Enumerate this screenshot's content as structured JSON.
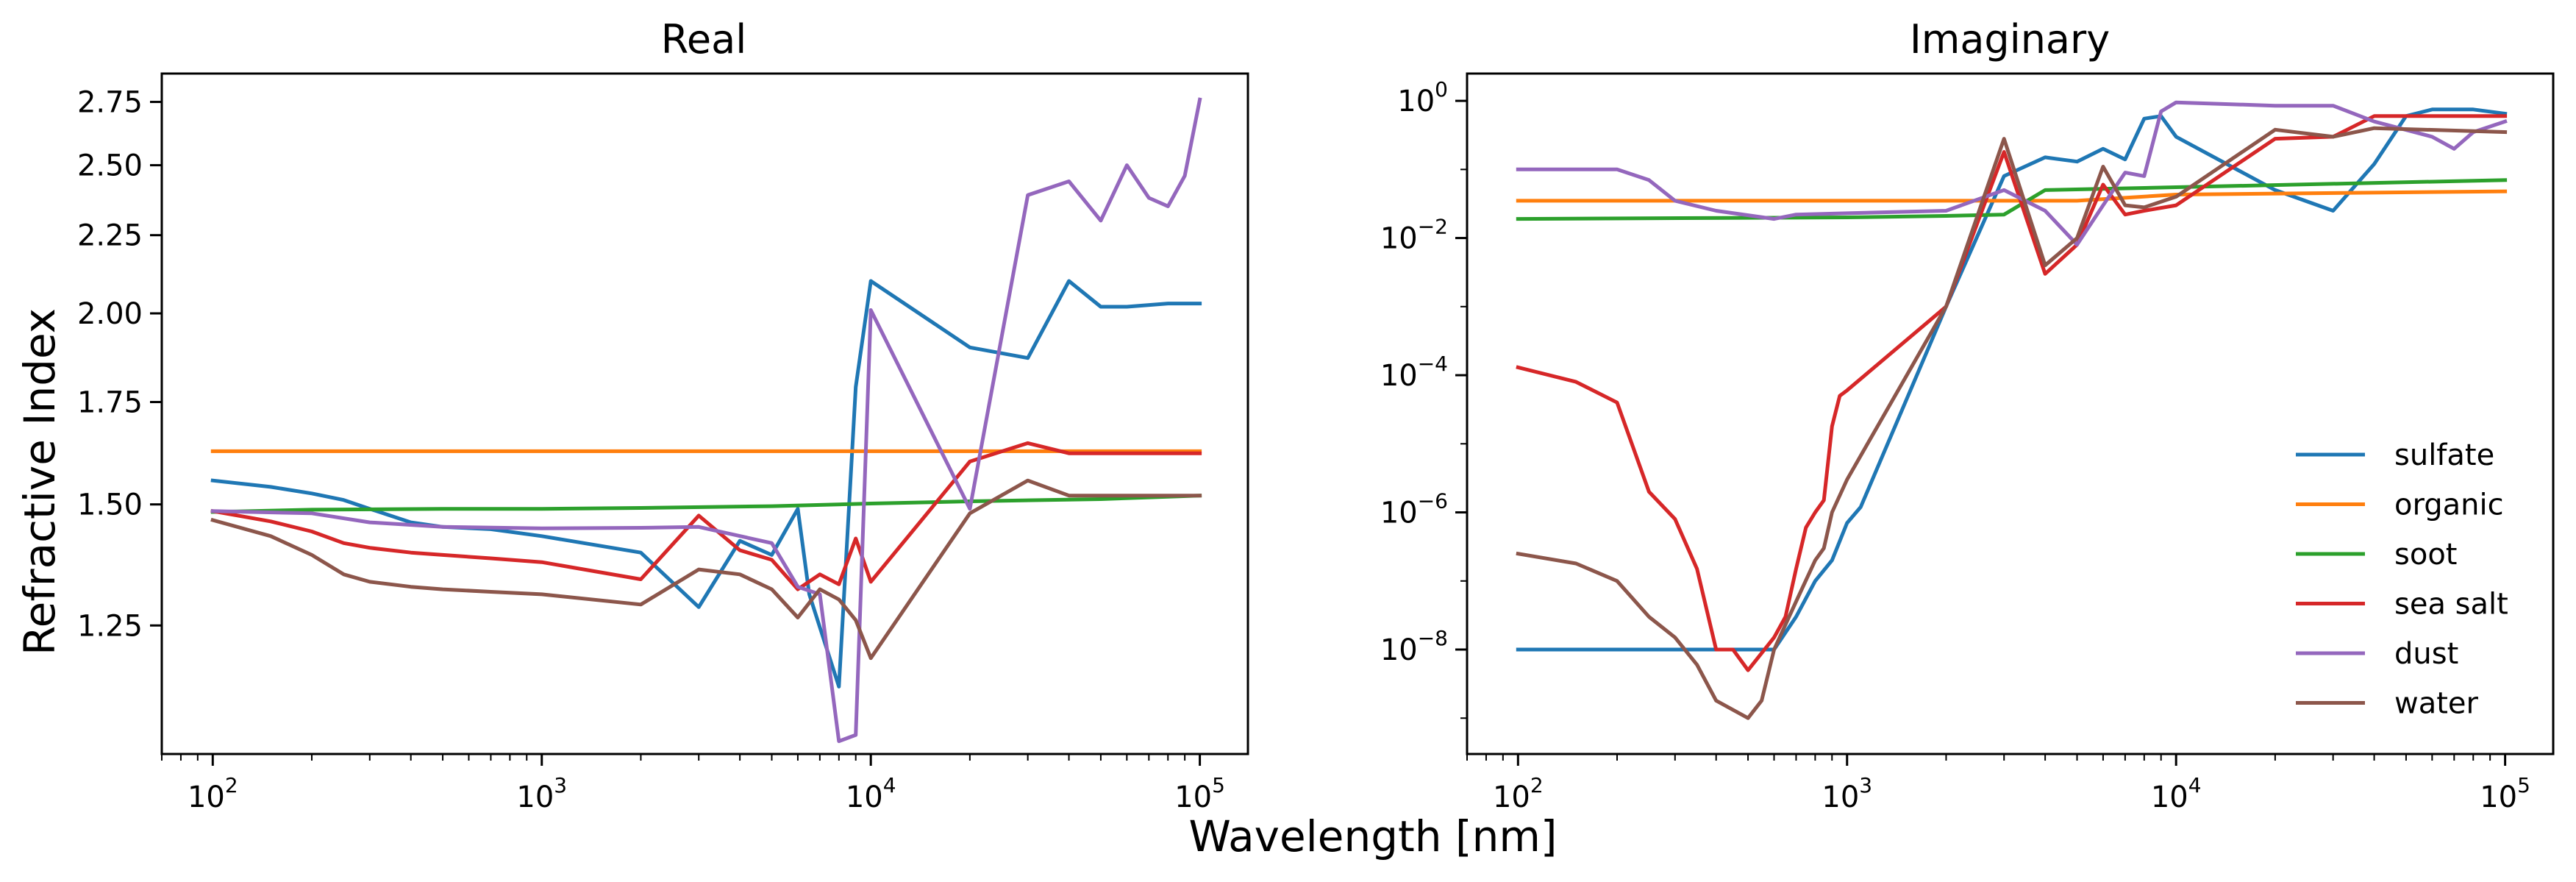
{
  "chart_data": [
    {
      "type": "line",
      "title": "Real",
      "xscale": "log",
      "yscale": "log",
      "xlim": [
        70,
        140000
      ],
      "ylim": [
        1.03,
        2.87
      ],
      "xticks": [
        {
          "value": 100,
          "base": "10",
          "exp": "2"
        },
        {
          "value": 1000,
          "base": "10",
          "exp": "3"
        },
        {
          "value": 10000,
          "base": "10",
          "exp": "4"
        },
        {
          "value": 100000,
          "base": "10",
          "exp": "5"
        }
      ],
      "yticks": [
        {
          "value": 1.25,
          "label": "1.25"
        },
        {
          "value": 1.5,
          "label": "1.50"
        },
        {
          "value": 1.75,
          "label": "1.75"
        },
        {
          "value": 2.0,
          "label": "2.00"
        },
        {
          "value": 2.25,
          "label": "2.25"
        },
        {
          "value": 2.5,
          "label": "2.50"
        },
        {
          "value": 2.75,
          "label": "2.75"
        }
      ],
      "ylabel": "Refractive Index",
      "series": [
        {
          "name": "sulfate",
          "color": "#1f77b4",
          "points": [
            [
              100,
              1.555
            ],
            [
              150,
              1.54
            ],
            [
              200,
              1.525
            ],
            [
              250,
              1.51
            ],
            [
              300,
              1.49
            ],
            [
              400,
              1.46
            ],
            [
              500,
              1.45
            ],
            [
              700,
              1.445
            ],
            [
              1000,
              1.43
            ],
            [
              2000,
              1.395
            ],
            [
              3000,
              1.285
            ],
            [
              4000,
              1.42
            ],
            [
              5000,
              1.39
            ],
            [
              6000,
              1.49
            ],
            [
              6500,
              1.31
            ],
            [
              8000,
              1.14
            ],
            [
              9000,
              1.79
            ],
            [
              10000,
              2.1
            ],
            [
              20000,
              1.9
            ],
            [
              30000,
              1.87
            ],
            [
              40000,
              2.1
            ],
            [
              50000,
              2.02
            ],
            [
              60000,
              2.02
            ],
            [
              80000,
              2.03
            ],
            [
              100000,
              2.03
            ]
          ]
        },
        {
          "name": "organic",
          "color": "#ff7f0e",
          "points": [
            [
              100,
              1.625
            ],
            [
              100000,
              1.625
            ]
          ]
        },
        {
          "name": "soot",
          "color": "#2ca02c",
          "points": [
            [
              100,
              1.483
            ],
            [
              200,
              1.488
            ],
            [
              500,
              1.49
            ],
            [
              1000,
              1.49
            ],
            [
              2000,
              1.492
            ],
            [
              5000,
              1.496
            ],
            [
              10000,
              1.502
            ],
            [
              20000,
              1.507
            ],
            [
              50000,
              1.512
            ],
            [
              100000,
              1.52
            ]
          ]
        },
        {
          "name": "sea salt",
          "color": "#d62728",
          "points": [
            [
              100,
              1.485
            ],
            [
              150,
              1.462
            ],
            [
              200,
              1.44
            ],
            [
              250,
              1.415
            ],
            [
              300,
              1.405
            ],
            [
              400,
              1.395
            ],
            [
              500,
              1.39
            ],
            [
              700,
              1.383
            ],
            [
              1000,
              1.375
            ],
            [
              2000,
              1.34
            ],
            [
              3000,
              1.475
            ],
            [
              4000,
              1.4
            ],
            [
              5000,
              1.38
            ],
            [
              6000,
              1.32
            ],
            [
              7000,
              1.35
            ],
            [
              8000,
              1.33
            ],
            [
              9000,
              1.425
            ],
            [
              10000,
              1.335
            ],
            [
              20000,
              1.6
            ],
            [
              30000,
              1.645
            ],
            [
              40000,
              1.62
            ],
            [
              100000,
              1.62
            ]
          ]
        },
        {
          "name": "dust",
          "color": "#9467bd",
          "points": [
            [
              100,
              1.485
            ],
            [
              200,
              1.48
            ],
            [
              300,
              1.46
            ],
            [
              500,
              1.45
            ],
            [
              1000,
              1.447
            ],
            [
              2000,
              1.448
            ],
            [
              3000,
              1.45
            ],
            [
              5000,
              1.415
            ],
            [
              6000,
              1.325
            ],
            [
              7000,
              1.31
            ],
            [
              8000,
              1.05
            ],
            [
              9000,
              1.06
            ],
            [
              10000,
              2.01
            ],
            [
              20000,
              1.49
            ],
            [
              30000,
              2.39
            ],
            [
              40000,
              2.44
            ],
            [
              50000,
              2.3
            ],
            [
              60000,
              2.5
            ],
            [
              70000,
              2.38
            ],
            [
              80000,
              2.35
            ],
            [
              90000,
              2.46
            ],
            [
              100000,
              2.76
            ]
          ]
        },
        {
          "name": "water",
          "color": "#8c564b",
          "points": [
            [
              100,
              1.465
            ],
            [
              150,
              1.43
            ],
            [
              200,
              1.39
            ],
            [
              250,
              1.35
            ],
            [
              300,
              1.335
            ],
            [
              400,
              1.325
            ],
            [
              500,
              1.32
            ],
            [
              700,
              1.315
            ],
            [
              1000,
              1.31
            ],
            [
              2000,
              1.29
            ],
            [
              3000,
              1.36
            ],
            [
              4000,
              1.35
            ],
            [
              5000,
              1.32
            ],
            [
              6000,
              1.265
            ],
            [
              7000,
              1.32
            ],
            [
              8000,
              1.3
            ],
            [
              9000,
              1.26
            ],
            [
              10000,
              1.19
            ],
            [
              20000,
              1.48
            ],
            [
              30000,
              1.555
            ],
            [
              40000,
              1.52
            ],
            [
              100000,
              1.52
            ]
          ]
        }
      ]
    },
    {
      "type": "line",
      "title": "Imaginary",
      "xscale": "log",
      "yscale": "log",
      "xlim": [
        70,
        140000
      ],
      "ylim": [
        3e-10,
        2.5
      ],
      "xticks": [
        {
          "value": 100,
          "base": "10",
          "exp": "2"
        },
        {
          "value": 1000,
          "base": "10",
          "exp": "3"
        },
        {
          "value": 10000,
          "base": "10",
          "exp": "4"
        },
        {
          "value": 100000,
          "base": "10",
          "exp": "5"
        }
      ],
      "yticks": [
        {
          "value": 1e-08,
          "base": "10",
          "exp": "−8"
        },
        {
          "value": 1e-06,
          "base": "10",
          "exp": "−6"
        },
        {
          "value": 0.0001,
          "base": "10",
          "exp": "−4"
        },
        {
          "value": 0.01,
          "base": "10",
          "exp": "−2"
        },
        {
          "value": 1,
          "base": "10",
          "exp": "0"
        }
      ],
      "series": [
        {
          "name": "sulfate",
          "color": "#1f77b4",
          "points": [
            [
              100,
              1e-08
            ],
            [
              500,
              1e-08
            ],
            [
              600,
              1e-08
            ],
            [
              700,
              3e-08
            ],
            [
              800,
              1e-07
            ],
            [
              900,
              2e-07
            ],
            [
              1000,
              7e-07
            ],
            [
              1100,
              1.2e-06
            ],
            [
              2000,
              0.001
            ],
            [
              3000,
              0.08
            ],
            [
              4000,
              0.15
            ],
            [
              5000,
              0.13
            ],
            [
              6000,
              0.2
            ],
            [
              7000,
              0.14
            ],
            [
              8000,
              0.55
            ],
            [
              9000,
              0.6
            ],
            [
              10000,
              0.3
            ],
            [
              20000,
              0.05
            ],
            [
              30000,
              0.025
            ],
            [
              40000,
              0.12
            ],
            [
              50000,
              0.6
            ],
            [
              60000,
              0.75
            ],
            [
              80000,
              0.75
            ],
            [
              100000,
              0.65
            ]
          ]
        },
        {
          "name": "organic",
          "color": "#ff7f0e",
          "points": [
            [
              100,
              0.035
            ],
            [
              5000,
              0.035
            ],
            [
              10000,
              0.043
            ],
            [
              100000,
              0.048
            ]
          ]
        },
        {
          "name": "soot",
          "color": "#2ca02c",
          "points": [
            [
              100,
              0.019
            ],
            [
              1000,
              0.02
            ],
            [
              2000,
              0.021
            ],
            [
              3000,
              0.022
            ],
            [
              4000,
              0.05
            ],
            [
              10000,
              0.055
            ],
            [
              100000,
              0.07
            ]
          ]
        },
        {
          "name": "sea salt",
          "color": "#d62728",
          "points": [
            [
              100,
              0.00013
            ],
            [
              150,
              8e-05
            ],
            [
              200,
              4e-05
            ],
            [
              250,
              2e-06
            ],
            [
              300,
              8e-07
            ],
            [
              350,
              1.5e-07
            ],
            [
              400,
              1e-08
            ],
            [
              450,
              1e-08
            ],
            [
              500,
              5e-09
            ],
            [
              600,
              1.5e-08
            ],
            [
              650,
              3e-08
            ],
            [
              700,
              1.5e-07
            ],
            [
              750,
              6e-07
            ],
            [
              800,
              1e-06
            ],
            [
              850,
              1.5e-06
            ],
            [
              900,
              1.8e-05
            ],
            [
              950,
              5e-05
            ],
            [
              1000,
              6e-05
            ],
            [
              2000,
              0.001
            ],
            [
              3000,
              0.18
            ],
            [
              4000,
              0.003
            ],
            [
              5000,
              0.008
            ],
            [
              6000,
              0.06
            ],
            [
              7000,
              0.022
            ],
            [
              8000,
              0.025
            ],
            [
              10000,
              0.03
            ],
            [
              20000,
              0.28
            ],
            [
              30000,
              0.3
            ],
            [
              40000,
              0.6
            ],
            [
              100000,
              0.6
            ]
          ]
        },
        {
          "name": "dust",
          "color": "#9467bd",
          "points": [
            [
              100,
              0.1
            ],
            [
              200,
              0.1
            ],
            [
              250,
              0.07
            ],
            [
              300,
              0.035
            ],
            [
              400,
              0.025
            ],
            [
              600,
              0.019
            ],
            [
              700,
              0.022
            ],
            [
              1000,
              0.023
            ],
            [
              2000,
              0.025
            ],
            [
              3000,
              0.05
            ],
            [
              4000,
              0.025
            ],
            [
              5000,
              0.008
            ],
            [
              6000,
              0.03
            ],
            [
              7000,
              0.09
            ],
            [
              8000,
              0.08
            ],
            [
              9000,
              0.7
            ],
            [
              10000,
              0.95
            ],
            [
              20000,
              0.85
            ],
            [
              30000,
              0.85
            ],
            [
              40000,
              0.5
            ],
            [
              60000,
              0.3
            ],
            [
              70000,
              0.2
            ],
            [
              80000,
              0.35
            ],
            [
              100000,
              0.5
            ]
          ]
        },
        {
          "name": "water",
          "color": "#8c564b",
          "points": [
            [
              100,
              2.5e-07
            ],
            [
              150,
              1.8e-07
            ],
            [
              200,
              1e-07
            ],
            [
              250,
              3e-08
            ],
            [
              300,
              1.5e-08
            ],
            [
              350,
              6e-09
            ],
            [
              400,
              1.8e-09
            ],
            [
              500,
              1e-09
            ],
            [
              550,
              1.8e-09
            ],
            [
              600,
              1e-08
            ],
            [
              700,
              5e-08
            ],
            [
              800,
              2e-07
            ],
            [
              850,
              3e-07
            ],
            [
              900,
              1e-06
            ],
            [
              1000,
              3e-06
            ],
            [
              2000,
              0.001
            ],
            [
              3000,
              0.28
            ],
            [
              4000,
              0.004
            ],
            [
              5000,
              0.01
            ],
            [
              6000,
              0.11
            ],
            [
              7000,
              0.03
            ],
            [
              8000,
              0.028
            ],
            [
              10000,
              0.04
            ],
            [
              20000,
              0.38
            ],
            [
              30000,
              0.3
            ],
            [
              40000,
              0.4
            ],
            [
              100000,
              0.35
            ]
          ]
        }
      ]
    }
  ],
  "figure": {
    "xlabel": "Wavelength [nm]"
  },
  "legend": {
    "location": "lower right of Imaginary panel",
    "entries": [
      "sulfate",
      "organic",
      "soot",
      "sea salt",
      "dust",
      "water"
    ]
  }
}
